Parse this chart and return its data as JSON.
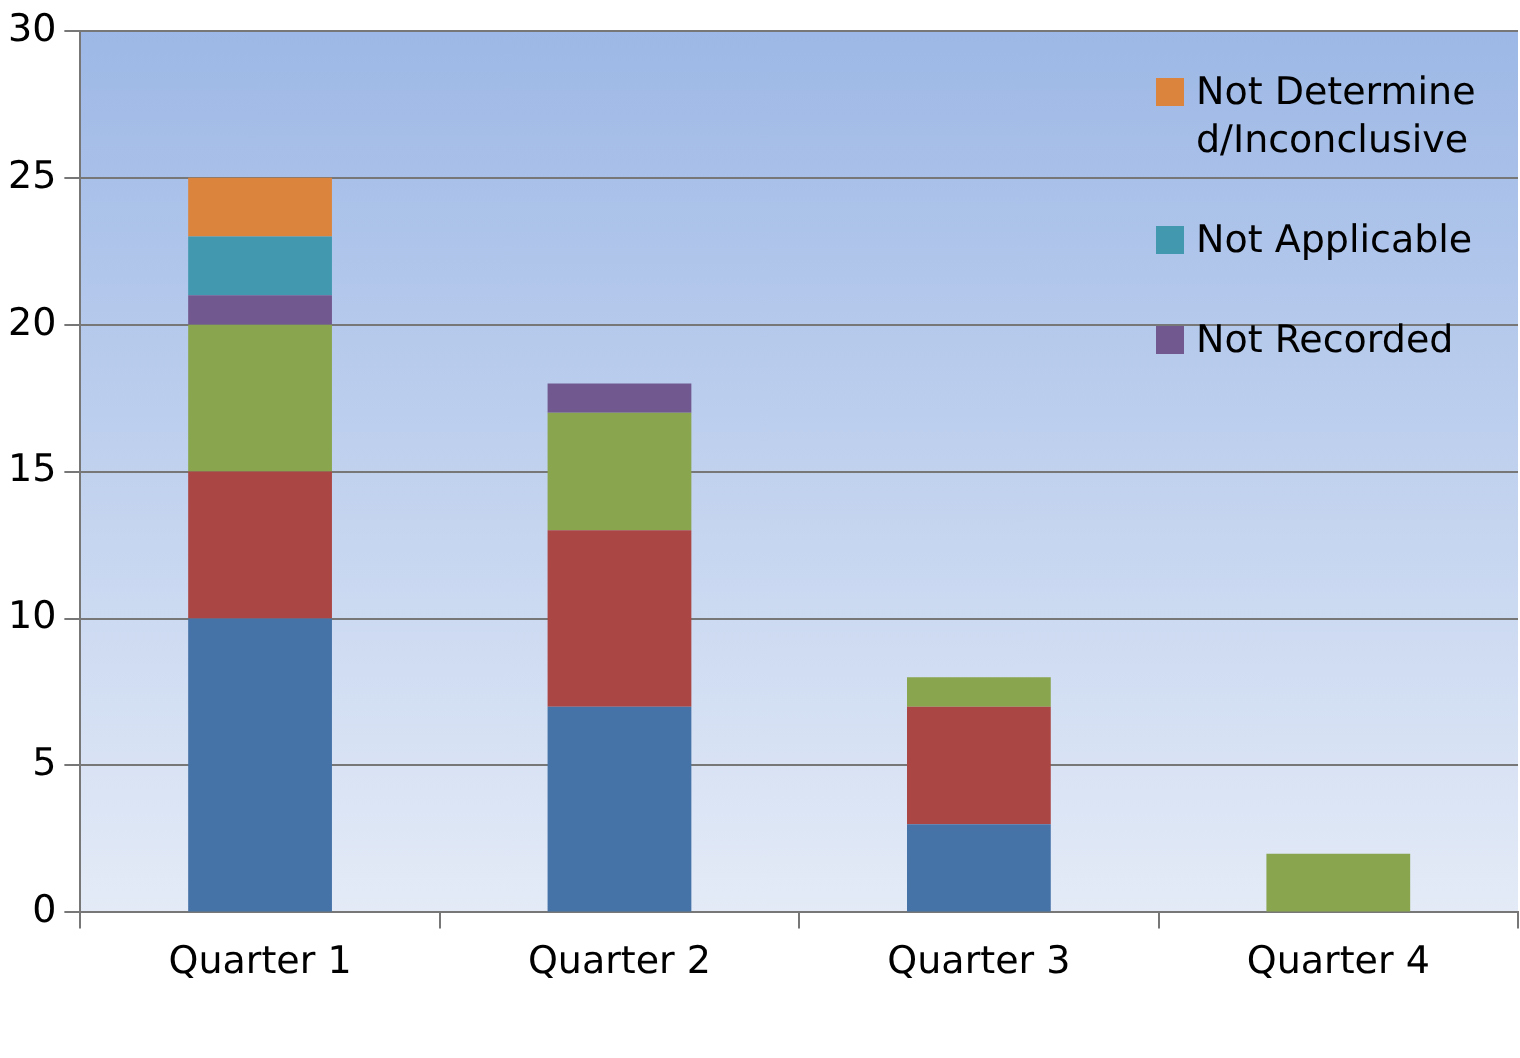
{
  "chart_data": {
    "type": "bar",
    "stacked": true,
    "categories": [
      "Quarter 1",
      "Quarter 2",
      "Quarter 3",
      "Quarter 4"
    ],
    "series": [
      {
        "color": "#4572a7",
        "values": [
          10,
          7,
          3,
          0
        ]
      },
      {
        "color": "#aa4643",
        "values": [
          5,
          6,
          4,
          0
        ]
      },
      {
        "color": "#89a54e",
        "values": [
          5,
          4,
          1,
          2
        ]
      },
      {
        "name": "Not Recorded",
        "color": "#71588f",
        "values": [
          1,
          1,
          0,
          0
        ]
      },
      {
        "name": "Not Applicable",
        "color": "#4198af",
        "values": [
          2,
          0,
          0,
          0
        ]
      },
      {
        "name": "Not Determined/Inconclusive",
        "color": "#db843d",
        "values": [
          2,
          0,
          0,
          0
        ]
      }
    ],
    "ylim": [
      0,
      30
    ],
    "yticks": [
      0,
      5,
      10,
      15,
      20,
      25,
      30
    ],
    "grid": "y",
    "legend": "top right"
  }
}
